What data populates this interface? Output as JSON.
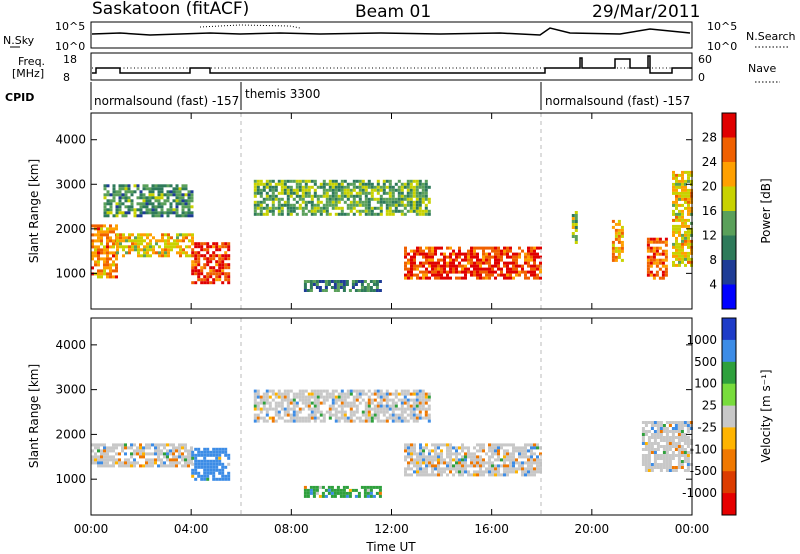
{
  "header": {
    "station": "Saskatoon (fitACF)",
    "beam": "Beam 01",
    "date": "29/Mar/2011"
  },
  "top_panels": {
    "nsky_label": "N.Sky",
    "nsky_ticks": [
      "10^5",
      "10^0"
    ],
    "nsearch_label": "N.Search",
    "nsearch_ticks": [
      "10^5",
      "10^0"
    ],
    "freq_label_1": "Freq.",
    "freq_label_2": "[MHz]",
    "freq_ticks": [
      "18",
      "8"
    ],
    "nave_label": "Nave",
    "nave_ticks": [
      "60",
      "0"
    ],
    "cpid_label": "CPID",
    "cpid_segments": [
      {
        "label": "normalsound (fast) -157",
        "start_hour": 0,
        "end_hour": 6.0
      },
      {
        "label": "themis 3300",
        "start_hour": 6.0,
        "end_hour": 18.0
      },
      {
        "label": "normalsound (fast) -157",
        "start_hour": 18.0,
        "end_hour": 24.0
      }
    ]
  },
  "chart_data": [
    {
      "type": "heatmap",
      "name": "power",
      "xlabel": "",
      "ylabel": "Slant Range [km]",
      "xlim": [
        0,
        24
      ],
      "ylim": [
        200,
        4600
      ],
      "yticks": [
        "4000",
        "3000",
        "2000",
        "1000"
      ],
      "colorbar": {
        "label": "Power [dB]",
        "ticks": [
          "28",
          "24",
          "20",
          "16",
          "12",
          "8",
          "4"
        ],
        "colors": [
          "#e00000",
          "#f06000",
          "#ffa000",
          "#c8d200",
          "#5aa05a",
          "#2e7a5a",
          "#1e3c96",
          "#0000ff"
        ]
      },
      "echo_regions": [
        {
          "t0": 0.0,
          "t1": 1.0,
          "r0": 900,
          "r1": 2100,
          "dB": 22
        },
        {
          "t0": 1.0,
          "t1": 4.0,
          "r0": 1400,
          "r1": 1900,
          "dB": 18
        },
        {
          "t0": 4.0,
          "t1": 5.5,
          "r0": 800,
          "r1": 1700,
          "dB": 26
        },
        {
          "t0": 0.5,
          "t1": 4.0,
          "r0": 2300,
          "r1": 3000,
          "dB": 10
        },
        {
          "t0": 6.5,
          "t1": 13.5,
          "r0": 2300,
          "r1": 3100,
          "dB": 12
        },
        {
          "t0": 8.5,
          "t1": 11.5,
          "r0": 600,
          "r1": 850,
          "dB": 8
        },
        {
          "t0": 12.5,
          "t1": 18.0,
          "r0": 900,
          "r1": 1600,
          "dB": 26
        },
        {
          "t0": 19.2,
          "t1": 19.4,
          "r0": 1700,
          "r1": 2400,
          "dB": 14
        },
        {
          "t0": 20.8,
          "t1": 21.2,
          "r0": 1300,
          "r1": 2200,
          "dB": 20
        },
        {
          "t0": 22.2,
          "t1": 23.0,
          "r0": 900,
          "r1": 1800,
          "dB": 24
        },
        {
          "t0": 23.2,
          "t1": 24.0,
          "r0": 1200,
          "r1": 3300,
          "dB": 18
        }
      ]
    },
    {
      "type": "heatmap",
      "name": "velocity",
      "xlabel": "Time UT",
      "ylabel": "Slant Range [km]",
      "xlim": [
        0,
        24
      ],
      "ylim": [
        200,
        4600
      ],
      "yticks": [
        "4000",
        "3000",
        "2000",
        "1000"
      ],
      "xticks": [
        "00:00",
        "04:00",
        "08:00",
        "12:00",
        "16:00",
        "20:00",
        "00:00"
      ],
      "colorbar": {
        "label": "Velocity [m s⁻¹]",
        "ticks": [
          "1000",
          "500",
          "100",
          "25",
          "-25",
          "-100",
          "-500",
          "-1000"
        ],
        "colors": [
          "#1e3cc8",
          "#3c8ce6",
          "#2ea03c",
          "#78dc3c",
          "#c8c8c8",
          "#ffb400",
          "#f07800",
          "#dc3c00",
          "#e60000"
        ]
      },
      "echo_regions": [
        {
          "t0": 0.0,
          "t1": 4.0,
          "r0": 1300,
          "r1": 1800,
          "vel": 0
        },
        {
          "t0": 4.0,
          "t1": 5.5,
          "r0": 1000,
          "r1": 1700,
          "vel": 150
        },
        {
          "t0": 6.5,
          "t1": 13.5,
          "r0": 2300,
          "r1": 3000,
          "vel": 0
        },
        {
          "t0": 8.5,
          "t1": 11.5,
          "r0": 600,
          "r1": 850,
          "vel": 80
        },
        {
          "t0": 12.5,
          "t1": 18.0,
          "r0": 1100,
          "r1": 1800,
          "vel": 0
        },
        {
          "t0": 22.0,
          "t1": 24.0,
          "r0": 1200,
          "r1": 2300,
          "vel": 0
        }
      ]
    }
  ]
}
